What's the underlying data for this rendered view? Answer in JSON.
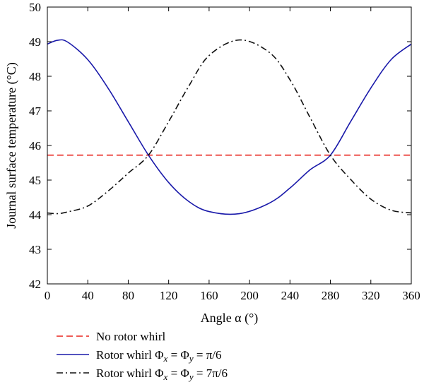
{
  "chart_data": {
    "type": "line",
    "xlabel": "Angle α (°)",
    "ylabel": "Journal surface temperature (°C)",
    "xlim": [
      0,
      360
    ],
    "ylim": [
      42,
      50
    ],
    "xticks": [
      0,
      40,
      80,
      120,
      160,
      200,
      240,
      280,
      320,
      360
    ],
    "yticks": [
      42,
      43,
      44,
      45,
      46,
      47,
      48,
      49,
      50
    ],
    "grid": false,
    "legend_position": "bottom-outside",
    "series": [
      {
        "name": "No rotor whirl",
        "color": "#e8251f",
        "style": "dashed",
        "x": [
          0,
          360
        ],
        "y": [
          45.72,
          45.72
        ]
      },
      {
        "name": "Rotor whirl Φx = Φy = π/6",
        "legend_parts": [
          "Rotor whirl Φ",
          "x",
          " = Φ",
          "y",
          " = π/6"
        ],
        "color": "#1a1aaa",
        "style": "solid",
        "x": [
          0,
          10,
          20,
          40,
          60,
          80,
          100,
          120,
          140,
          160,
          190,
          220,
          240,
          260,
          280,
          300,
          320,
          340,
          360
        ],
        "y": [
          48.93,
          49.04,
          48.99,
          48.48,
          47.66,
          46.69,
          45.72,
          44.93,
          44.38,
          44.09,
          44.03,
          44.34,
          44.77,
          45.3,
          45.72,
          46.69,
          47.66,
          48.48,
          48.93
        ]
      },
      {
        "name": "Rotor whirl Φx = Φy = 7π/6",
        "legend_parts": [
          "Rotor whirl Φ",
          "x",
          " = Φ",
          "y",
          " = 7π/6"
        ],
        "color": "#111111",
        "style": "dashdot",
        "x": [
          0,
          10,
          20,
          40,
          60,
          80,
          100,
          120,
          140,
          160,
          190,
          220,
          240,
          260,
          280,
          300,
          320,
          340,
          360
        ],
        "y": [
          44.05,
          44.03,
          44.08,
          44.25,
          44.68,
          45.2,
          45.72,
          46.69,
          47.72,
          48.6,
          49.05,
          48.68,
          47.9,
          46.8,
          45.72,
          45.02,
          44.45,
          44.13,
          44.05
        ]
      }
    ]
  }
}
